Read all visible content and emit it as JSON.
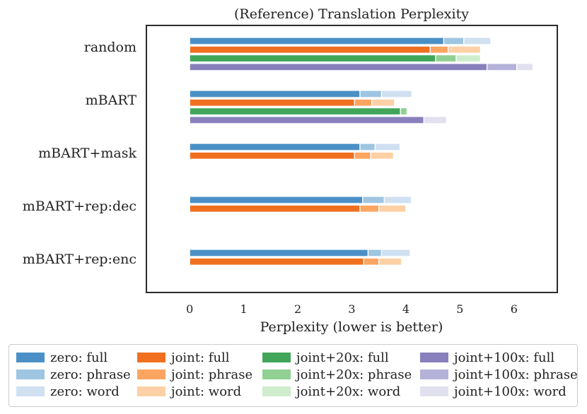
{
  "chart_data": {
    "type": "bar",
    "orientation": "horizontal",
    "title": "(Reference) Translation Perplexity",
    "xlabel": "Perplexity (lower is better)",
    "ylabel": "",
    "xlim": [
      -0.8,
      6.8
    ],
    "xticks": [
      0,
      1,
      2,
      3,
      4,
      5,
      6
    ],
    "categories": [
      "random",
      "mBART",
      "mBART+mask",
      "mBART+rep:dec",
      "mBART+rep:enc"
    ],
    "groups": [
      {
        "name": "zero",
        "colors": [
          "#4a90c6",
          "#9ec5e1",
          "#cfe0f1"
        ]
      },
      {
        "name": "joint",
        "colors": [
          "#f07020",
          "#fca561",
          "#fdd0a5"
        ]
      },
      {
        "name": "joint+20x",
        "colors": [
          "#41a65a",
          "#90d092",
          "#cfedcc"
        ]
      },
      {
        "name": "joint+100x",
        "colors": [
          "#8880bc",
          "#b4b2d9",
          "#e1e0ef"
        ]
      }
    ],
    "component_names": [
      "full",
      "phrase",
      "word"
    ],
    "series": [
      {
        "name": "zero",
        "values": [
          [
            4.7,
            0.37,
            0.5
          ],
          [
            3.15,
            0.4,
            0.56
          ],
          [
            3.15,
            0.28,
            0.46
          ],
          [
            3.2,
            0.4,
            0.5
          ],
          [
            3.3,
            0.25,
            0.53
          ]
        ]
      },
      {
        "name": "joint",
        "values": [
          [
            4.45,
            0.33,
            0.6
          ],
          [
            3.05,
            0.32,
            0.42
          ],
          [
            3.05,
            0.3,
            0.42
          ],
          [
            3.15,
            0.35,
            0.5
          ],
          [
            3.22,
            0.28,
            0.42
          ]
        ]
      },
      {
        "name": "joint+20x",
        "values": [
          [
            4.55,
            0.38,
            0.45
          ],
          [
            3.9,
            0.12,
            0
          ],
          null,
          null,
          null
        ]
      },
      {
        "name": "joint+100x",
        "values": [
          [
            5.5,
            0.55,
            0.3
          ],
          [
            4.55,
            0.2,
            -0.42
          ],
          null,
          null,
          null
        ]
      }
    ]
  },
  "legend": {
    "entries": [
      {
        "label": "zero: full",
        "color": "#4a90c6"
      },
      {
        "label": "zero: phrase",
        "color": "#9ec5e1"
      },
      {
        "label": "zero: word",
        "color": "#cfe0f1"
      },
      {
        "label": "joint: full",
        "color": "#f07020"
      },
      {
        "label": "joint: phrase",
        "color": "#fca561"
      },
      {
        "label": "joint: word",
        "color": "#fdd0a5"
      },
      {
        "label": "joint+20x: full",
        "color": "#41a65a"
      },
      {
        "label": "joint+20x: phrase",
        "color": "#90d092"
      },
      {
        "label": "joint+20x: word",
        "color": "#cfedcc"
      },
      {
        "label": "joint+100x: full",
        "color": "#8880bc"
      },
      {
        "label": "joint+100x: phrase",
        "color": "#b4b2d9"
      },
      {
        "label": "joint+100x: word",
        "color": "#e1e0ef"
      }
    ]
  }
}
